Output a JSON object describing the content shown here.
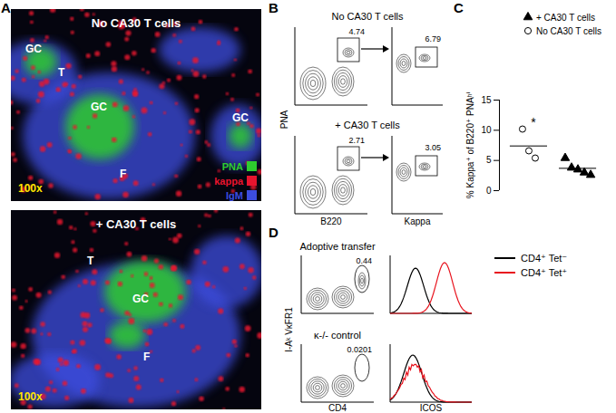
{
  "panels": {
    "A": {
      "label": "A",
      "images": [
        {
          "title": "No CA30 T cells",
          "region_labels": [
            "GC",
            "T",
            "GC",
            "F",
            "GC"
          ],
          "magnification": "100x"
        },
        {
          "title": "+ CA30 T cells",
          "region_labels": [
            "T",
            "GC",
            "F"
          ],
          "magnification": "100x"
        }
      ],
      "stain_legend": [
        {
          "text": "PNA",
          "color": "#2ecc2e"
        },
        {
          "text": "kappa",
          "color": "#e8142e"
        },
        {
          "text": "IgM",
          "color": "#3c4de0"
        }
      ]
    },
    "B": {
      "label": "B",
      "y_label": "PNA",
      "x_labels": [
        "B220",
        "Kappa"
      ],
      "rows": [
        {
          "title": "No CA30 T cells",
          "gates": [
            "4.74",
            "6.79"
          ]
        },
        {
          "title": "+ CA30 T cells",
          "gates": [
            "2.71",
            "3.05"
          ]
        }
      ]
    },
    "C": {
      "label": "C"
    },
    "D": {
      "label": "D",
      "y_label": "I-Aᵏ VκFR1",
      "x_labels": [
        "CD4",
        "ICOS"
      ],
      "rows": [
        {
          "title": "Adoptive transfer",
          "gate": "0.44"
        },
        {
          "title": "κ-/- control",
          "gate": "0.0201"
        }
      ],
      "legend": [
        {
          "text": "CD4⁺ Tet⁻",
          "color": "#000000"
        },
        {
          "text": "CD4⁺ Tet⁺",
          "color": "#e8141e"
        }
      ]
    }
  },
  "chart_data": {
    "type": "dot_plot",
    "ylabel": "% Kappa⁺ of B220⁺ PNAʰⁱ",
    "ylim": [
      0,
      15
    ],
    "yticks": [
      0,
      5,
      10,
      15
    ],
    "tick_labels": "y",
    "legend": "top-right",
    "annotations": [
      "*"
    ],
    "series": [
      {
        "name": "No CA30 T cells",
        "marker": "circle-open",
        "color": "#000000",
        "values": [
          10.2,
          6.6,
          5.4
        ],
        "mean": 7.4
      },
      {
        "name": "+ CA30 T cells",
        "marker": "triangle",
        "color": "#000000",
        "values": [
          5.4,
          3.8,
          3.5,
          3.0,
          2.6
        ],
        "mean": 3.7
      }
    ]
  }
}
